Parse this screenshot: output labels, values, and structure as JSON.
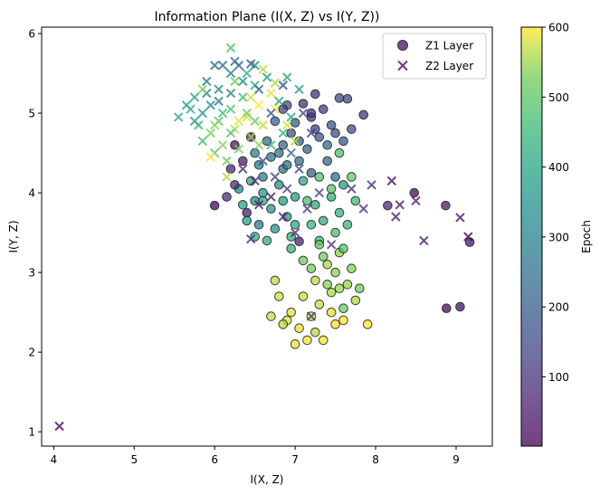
{
  "chart_data": {
    "type": "scatter",
    "title": "Information Plane (I(X, Z) vs I(Y, Z))",
    "xlabel": "I(X, Z)",
    "ylabel": "I(Y, Z)",
    "xlim": [
      3.85,
      9.45
    ],
    "ylim": [
      0.82,
      6.08
    ],
    "xticks": [
      "4",
      "5",
      "6",
      "7",
      "8",
      "9"
    ],
    "yticks": [
      "1",
      "2",
      "3",
      "4",
      "5",
      "6"
    ],
    "grid": false,
    "legend": {
      "placement": "top-right",
      "entries": [
        {
          "label": "Z1 Layer",
          "marker": "circle"
        },
        {
          "label": "Z2 Layer",
          "marker": "x"
        }
      ]
    },
    "colorbar": {
      "label": "Epoch",
      "range": [
        1,
        600
      ],
      "ticks": [
        "100",
        "200",
        "300",
        "400",
        "500",
        "600"
      ],
      "colormap": "viridis"
    },
    "series": [
      {
        "name": "Z1 Layer",
        "marker": "circle",
        "points": [
          [
            6.0,
            3.84,
            10
          ],
          [
            8.88,
            2.55,
            20
          ],
          [
            9.05,
            2.57,
            30
          ],
          [
            9.17,
            3.38,
            40
          ],
          [
            8.87,
            3.84,
            50
          ],
          [
            8.48,
            4.0,
            20
          ],
          [
            8.15,
            3.84,
            80
          ],
          [
            7.05,
            3.39,
            60
          ],
          [
            7.85,
            4.98,
            110
          ],
          [
            7.65,
            5.18,
            140
          ],
          [
            7.55,
            5.19,
            150
          ],
          [
            7.7,
            4.8,
            160
          ],
          [
            7.25,
            5.24,
            90
          ],
          [
            7.1,
            5.12,
            100
          ],
          [
            7.35,
            5.05,
            120
          ],
          [
            7.45,
            4.85,
            180
          ],
          [
            7.2,
            4.95,
            130
          ],
          [
            6.9,
            5.1,
            170
          ],
          [
            7.0,
            4.88,
            200
          ],
          [
            7.3,
            4.7,
            190
          ],
          [
            7.15,
            4.55,
            220
          ],
          [
            6.85,
            4.6,
            230
          ],
          [
            7.4,
            4.4,
            240
          ],
          [
            7.5,
            4.2,
            250
          ],
          [
            7.6,
            4.1,
            380
          ],
          [
            6.3,
            4.05,
            320
          ],
          [
            6.5,
            3.9,
            330
          ],
          [
            6.7,
            3.8,
            350
          ],
          [
            6.8,
            4.1,
            340
          ],
          [
            6.6,
            4.2,
            310
          ],
          [
            6.4,
            3.75,
            60
          ],
          [
            6.55,
            3.6,
            300
          ],
          [
            6.75,
            3.55,
            360
          ],
          [
            6.9,
            3.7,
            370
          ],
          [
            7.0,
            3.95,
            390
          ],
          [
            7.1,
            4.15,
            400
          ],
          [
            7.25,
            3.85,
            410
          ],
          [
            7.35,
            3.65,
            420
          ],
          [
            7.45,
            3.95,
            430
          ],
          [
            7.55,
            3.75,
            440
          ],
          [
            7.65,
            3.6,
            450
          ],
          [
            7.75,
            3.9,
            460
          ],
          [
            7.5,
            3.5,
            470
          ],
          [
            7.3,
            3.4,
            455
          ],
          [
            7.2,
            3.6,
            445
          ],
          [
            6.95,
            3.45,
            435
          ],
          [
            6.65,
            3.4,
            425
          ],
          [
            6.6,
            3.9,
            415
          ],
          [
            6.45,
            4.15,
            405
          ],
          [
            6.35,
            3.85,
            395
          ],
          [
            6.2,
            4.3,
            70
          ],
          [
            6.25,
            4.1,
            80
          ],
          [
            6.15,
            3.95,
            90
          ],
          [
            6.4,
            3.65,
            385
          ],
          [
            6.55,
            4.35,
            290
          ],
          [
            6.7,
            4.45,
            280
          ],
          [
            6.85,
            4.3,
            270
          ],
          [
            7.05,
            4.4,
            260
          ],
          [
            7.2,
            4.25,
            210
          ],
          [
            7.4,
            4.6,
            240
          ],
          [
            7.55,
            4.5,
            480
          ],
          [
            7.3,
            4.2,
            490
          ],
          [
            7.45,
            4.05,
            500
          ],
          [
            7.7,
            4.2,
            510
          ],
          [
            7.15,
            3.9,
            475
          ],
          [
            7.35,
            3.2,
            530
          ],
          [
            7.5,
            3.0,
            540
          ],
          [
            7.65,
            2.85,
            550
          ],
          [
            7.45,
            2.75,
            560
          ],
          [
            7.3,
            2.6,
            570
          ],
          [
            7.2,
            2.45,
            580
          ],
          [
            7.05,
            2.3,
            590
          ],
          [
            6.95,
            2.5,
            585
          ],
          [
            7.1,
            2.7,
            575
          ],
          [
            7.25,
            2.9,
            565
          ],
          [
            7.4,
            3.1,
            555
          ],
          [
            7.55,
            3.25,
            545
          ],
          [
            7.7,
            3.05,
            535
          ],
          [
            7.8,
            2.8,
            525
          ],
          [
            7.6,
            2.55,
            520
          ],
          [
            7.5,
            2.35,
            595
          ],
          [
            7.35,
            2.15,
            598
          ],
          [
            7.15,
            2.15,
            592
          ],
          [
            7.0,
            2.1,
            588
          ],
          [
            6.9,
            2.4,
            582
          ],
          [
            6.8,
            2.7,
            578
          ],
          [
            6.7,
            2.45,
            572
          ],
          [
            6.85,
            2.35,
            568
          ],
          [
            7.25,
            2.25,
            562
          ],
          [
            7.6,
            2.4,
            600
          ],
          [
            7.9,
            2.35,
            596
          ],
          [
            7.75,
            2.65,
            558
          ],
          [
            7.55,
            2.8,
            548
          ],
          [
            7.4,
            2.85,
            538
          ],
          [
            7.2,
            3.05,
            528
          ],
          [
            7.1,
            3.15,
            518
          ],
          [
            7.3,
            3.35,
            508
          ],
          [
            7.6,
            3.3,
            498
          ],
          [
            7.45,
            2.5,
            586
          ],
          [
            6.75,
            2.9,
            566
          ],
          [
            6.85,
            5.05,
            150
          ],
          [
            6.95,
            4.75,
            170
          ],
          [
            7.05,
            4.65,
            190
          ],
          [
            7.25,
            4.8,
            130
          ],
          [
            6.75,
            4.9,
            210
          ],
          [
            6.65,
            4.65,
            250
          ],
          [
            6.8,
            4.5,
            260
          ],
          [
            7.5,
            4.75,
            160
          ],
          [
            7.6,
            4.65,
            180
          ],
          [
            7.2,
            5.0,
            110
          ],
          [
            6.9,
            4.35,
            270
          ],
          [
            6.5,
            4.5,
            300
          ],
          [
            6.45,
            4.7,
            60
          ],
          [
            6.35,
            4.4,
            50
          ],
          [
            6.25,
            4.6,
            40
          ],
          [
            6.6,
            4.0,
            360
          ],
          [
            6.85,
            3.9,
            380
          ],
          [
            7.0,
            3.6,
            410
          ],
          [
            6.95,
            3.3,
            440
          ],
          [
            6.5,
            3.45,
            430
          ]
        ]
      },
      {
        "name": "Z2 Layer",
        "marker": "x",
        "points": [
          [
            4.07,
            1.07,
            10
          ],
          [
            8.2,
            4.15,
            30
          ],
          [
            8.6,
            3.4,
            40
          ],
          [
            9.05,
            3.69,
            50
          ],
          [
            9.15,
            3.45,
            20
          ],
          [
            8.25,
            3.7,
            60
          ],
          [
            8.5,
            3.9,
            70
          ],
          [
            8.3,
            3.85,
            40
          ],
          [
            7.95,
            4.1,
            80
          ],
          [
            7.85,
            3.8,
            90
          ],
          [
            7.7,
            4.05,
            100
          ],
          [
            7.45,
            3.35,
            110
          ],
          [
            6.45,
            3.42,
            120
          ],
          [
            7.2,
            2.45,
            130
          ],
          [
            6.2,
            5.5,
            300
          ],
          [
            6.05,
            5.3,
            320
          ],
          [
            5.95,
            5.1,
            340
          ],
          [
            5.85,
            5.0,
            360
          ],
          [
            5.75,
            4.9,
            380
          ],
          [
            5.65,
            5.1,
            400
          ],
          [
            5.9,
            5.4,
            280
          ],
          [
            6.1,
            5.6,
            260
          ],
          [
            6.25,
            5.65,
            240
          ],
          [
            6.4,
            5.5,
            420
          ],
          [
            6.5,
            5.35,
            440
          ],
          [
            6.35,
            5.2,
            460
          ],
          [
            6.2,
            5.05,
            480
          ],
          [
            6.05,
            4.9,
            500
          ],
          [
            5.95,
            4.75,
            520
          ],
          [
            6.1,
            4.6,
            540
          ],
          [
            6.25,
            4.8,
            560
          ],
          [
            6.4,
            4.95,
            580
          ],
          [
            6.55,
            5.1,
            600
          ],
          [
            6.7,
            5.25,
            590
          ],
          [
            6.6,
            4.85,
            570
          ],
          [
            6.45,
            4.7,
            550
          ],
          [
            6.3,
            4.55,
            530
          ],
          [
            6.15,
            4.4,
            510
          ],
          [
            6.0,
            4.5,
            490
          ],
          [
            5.85,
            4.65,
            470
          ],
          [
            6.7,
            4.6,
            450
          ],
          [
            6.85,
            4.75,
            430
          ],
          [
            6.95,
            4.95,
            410
          ],
          [
            6.8,
            5.15,
            390
          ],
          [
            6.65,
            5.45,
            370
          ],
          [
            6.5,
            5.6,
            350
          ],
          [
            6.35,
            5.4,
            330
          ],
          [
            6.2,
            5.25,
            310
          ],
          [
            6.05,
            5.15,
            290
          ],
          [
            5.9,
            5.25,
            270
          ],
          [
            6.0,
            5.6,
            250
          ],
          [
            6.2,
            5.82,
            480
          ],
          [
            6.9,
            5.45,
            400
          ],
          [
            7.05,
            5.3,
            380
          ],
          [
            6.45,
            5.62,
            200
          ],
          [
            6.75,
            5.05,
            600
          ],
          [
            6.9,
            4.85,
            580
          ],
          [
            7.0,
            4.65,
            560
          ],
          [
            6.6,
            4.4,
            160
          ],
          [
            6.75,
            4.2,
            140
          ],
          [
            6.9,
            4.05,
            120
          ],
          [
            6.5,
            4.15,
            100
          ],
          [
            6.35,
            4.3,
            80
          ],
          [
            6.7,
            3.95,
            60
          ],
          [
            6.85,
            3.7,
            70
          ],
          [
            7.0,
            3.5,
            90
          ],
          [
            7.15,
            3.8,
            110
          ],
          [
            7.3,
            4.0,
            130
          ],
          [
            7.05,
            4.3,
            150
          ],
          [
            6.55,
            3.85,
            50
          ],
          [
            6.4,
            5.0,
            520
          ],
          [
            6.55,
            4.6,
            540
          ],
          [
            6.2,
            4.75,
            500
          ],
          [
            6.1,
            5.0,
            460
          ],
          [
            5.8,
            4.85,
            440
          ],
          [
            5.7,
            5.05,
            420
          ],
          [
            5.55,
            4.95,
            410
          ],
          [
            5.75,
            5.2,
            390
          ],
          [
            6.3,
            5.6,
            230
          ],
          [
            6.55,
            5.3,
            210
          ],
          [
            6.7,
            5.0,
            190
          ],
          [
            6.85,
            5.35,
            170
          ],
          [
            7.1,
            5.0,
            150
          ],
          [
            7.2,
            4.75,
            130
          ],
          [
            6.95,
            4.5,
            220
          ],
          [
            6.15,
            4.2,
            560
          ],
          [
            5.95,
            4.45,
            600
          ],
          [
            6.3,
            4.9,
            585
          ],
          [
            6.45,
            5.2,
            575
          ],
          [
            6.6,
            5.55,
            565
          ],
          [
            6.75,
            5.38,
            555
          ],
          [
            6.0,
            4.85,
            545
          ],
          [
            5.85,
            5.3,
            535
          ],
          [
            6.25,
            5.4,
            525
          ],
          [
            6.5,
            4.9,
            515
          ]
        ]
      }
    ]
  }
}
